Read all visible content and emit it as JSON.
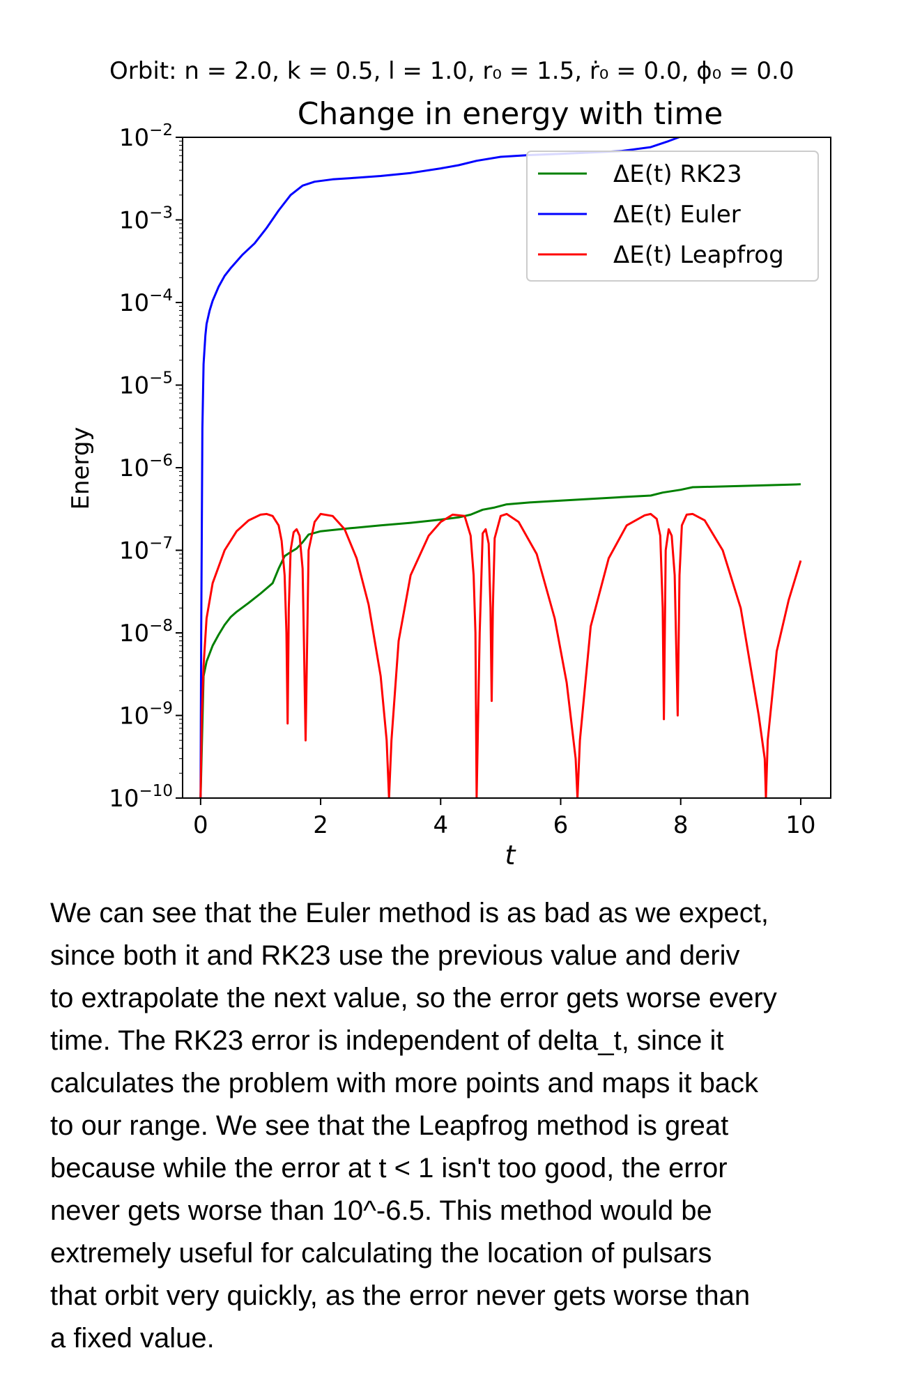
{
  "orbit_params": "Orbit:  n = 2.0,  k = 0.5,  l = 1.0,  r₀ = 1.5,  ṙ₀ = 0.0,  ϕ₀ = 0.0",
  "chart_data": {
    "type": "line",
    "title": "Change in energy with time",
    "xlabel": "t",
    "ylabel": "Energy",
    "xlim": [
      -0.3,
      10.5
    ],
    "ylim": [
      1e-10,
      0.01
    ],
    "yscale": "log",
    "xticks": [
      0,
      2,
      4,
      6,
      8,
      10
    ],
    "ytick_base": "10",
    "ytick_exponents": [
      "−2",
      "−3",
      "−4",
      "−5",
      "−6",
      "−7",
      "−8",
      "−9",
      "−10"
    ],
    "grid": false,
    "legend_position": "upper right",
    "series": [
      {
        "name": "ΔE(t) RK23",
        "color": "#008000",
        "x": [
          0.0,
          0.05,
          0.1,
          0.2,
          0.3,
          0.4,
          0.5,
          0.6,
          0.8,
          1.0,
          1.2,
          1.3,
          1.4,
          1.5,
          1.6,
          1.7,
          1.8,
          2.0,
          2.5,
          3.0,
          3.5,
          4.0,
          4.3,
          4.5,
          4.7,
          4.9,
          5.1,
          5.5,
          6.0,
          7.0,
          7.5,
          7.7,
          8.0,
          8.2,
          9.0,
          10.0
        ],
        "y": [
          1e-10,
          3e-09,
          4.5e-09,
          7e-09,
          9.5e-09,
          1.25e-08,
          1.55e-08,
          1.8e-08,
          2.3e-08,
          3e-08,
          4e-08,
          6e-08,
          8.5e-08,
          9.5e-08,
          1.05e-07,
          1.25e-07,
          1.55e-07,
          1.7e-07,
          1.85e-07,
          2e-07,
          2.15e-07,
          2.35e-07,
          2.5e-07,
          2.7e-07,
          3.1e-07,
          3.3e-07,
          3.6e-07,
          3.8e-07,
          4e-07,
          4.4e-07,
          4.6e-07,
          5e-07,
          5.4e-07,
          5.8e-07,
          6e-07,
          6.3e-07
        ]
      },
      {
        "name": "ΔE(t) Euler",
        "color": "#0000ff",
        "x": [
          0.0,
          0.01,
          0.02,
          0.03,
          0.05,
          0.08,
          0.1,
          0.15,
          0.2,
          0.3,
          0.4,
          0.5,
          0.7,
          0.9,
          1.1,
          1.3,
          1.5,
          1.7,
          1.9,
          2.2,
          2.5,
          3.0,
          3.5,
          4.0,
          4.3,
          4.6,
          5.0,
          5.5,
          6.0,
          7.0,
          7.5,
          7.8,
          8.0
        ],
        "y": [
          1e-10,
          1e-08,
          2e-07,
          3e-06,
          1.8e-05,
          4e-05,
          5.5e-05,
          8e-05,
          0.000105,
          0.000155,
          0.00021,
          0.00026,
          0.00038,
          0.00052,
          0.0008,
          0.0013,
          0.002,
          0.0026,
          0.0029,
          0.0031,
          0.0032,
          0.0034,
          0.0037,
          0.0042,
          0.0046,
          0.0052,
          0.0058,
          0.0061,
          0.0063,
          0.0068,
          0.0076,
          0.009,
          0.0102
        ]
      },
      {
        "name": "ΔE(t) Leapfrog",
        "color": "#ff0000",
        "x": [
          0.0,
          0.02,
          0.05,
          0.1,
          0.2,
          0.4,
          0.6,
          0.8,
          1.0,
          1.1,
          1.2,
          1.3,
          1.35,
          1.4,
          1.43,
          1.45,
          1.47,
          1.5,
          1.55,
          1.6,
          1.65,
          1.7,
          1.72,
          1.75,
          1.8,
          1.9,
          2.0,
          2.2,
          2.4,
          2.6,
          2.8,
          3.0,
          3.1,
          3.14,
          3.18,
          3.3,
          3.5,
          3.8,
          4.0,
          4.2,
          4.4,
          4.5,
          4.55,
          4.58,
          4.6,
          4.65,
          4.7,
          4.75,
          4.8,
          4.83,
          4.85,
          4.87,
          4.9,
          5.0,
          5.1,
          5.3,
          5.6,
          5.9,
          6.1,
          6.25,
          6.28,
          6.32,
          6.5,
          6.8,
          7.1,
          7.4,
          7.5,
          7.6,
          7.66,
          7.7,
          7.72,
          7.75,
          7.8,
          7.85,
          7.9,
          7.95,
          7.98,
          8.02,
          8.1,
          8.2,
          8.4,
          8.7,
          9.0,
          9.3,
          9.4,
          9.42,
          9.45,
          9.6,
          9.8,
          10.0
        ],
        "y": [
          1e-10,
          1e-09,
          4e-09,
          1.5e-08,
          4e-08,
          1e-07,
          1.7e-07,
          2.3e-07,
          2.7e-07,
          2.75e-07,
          2.6e-07,
          2e-07,
          1.3e-07,
          5e-08,
          1e-08,
          8e-10,
          2e-08,
          1e-07,
          1.65e-07,
          1.8e-07,
          1.5e-07,
          6e-08,
          1e-08,
          5e-10,
          1e-07,
          2.2e-07,
          2.75e-07,
          2.6e-07,
          1.8e-07,
          8e-08,
          2.2e-08,
          3e-09,
          5e-10,
          1e-10,
          5e-10,
          8e-09,
          5e-08,
          1.5e-07,
          2.2e-07,
          2.7e-07,
          2.6e-07,
          1.5e-07,
          5e-08,
          1e-08,
          1e-10,
          1e-08,
          1.6e-07,
          1.8e-07,
          1.2e-07,
          2e-08,
          1.5e-09,
          2e-08,
          1.4e-07,
          2.6e-07,
          2.75e-07,
          2.2e-07,
          9e-08,
          1.5e-08,
          2.5e-09,
          3e-10,
          1e-10,
          5e-10,
          1.2e-08,
          8e-08,
          2e-07,
          2.65e-07,
          2.75e-07,
          2.4e-07,
          1.5e-07,
          2e-08,
          9e-10,
          1e-07,
          1.8e-07,
          1.5e-07,
          5e-08,
          1e-09,
          5e-08,
          2e-07,
          2.7e-07,
          2.75e-07,
          2.3e-07,
          1e-07,
          2e-08,
          1e-09,
          3e-10,
          1e-10,
          5e-10,
          6e-09,
          2.5e-08,
          7.5e-08
        ]
      }
    ]
  },
  "commentary_lines": [
    "We can see that the Euler method is as bad as we expect,",
    "since both it and RK23 use the previous value and deriv",
    "to extrapolate the next value, so the error gets worse every",
    "time. The RK23 error is independent of delta_t, since it",
    "calculates the problem with more points and maps it back",
    "to our range. We see that the Leapfrog method is great",
    "because while the error at t < 1 isn't too good, the error",
    "never gets worse than 10^-6.5. This method would be",
    "extremely useful for calculating the location of pulsars",
    "that orbit very quickly, as the error never gets worse than",
    "a fixed value."
  ]
}
